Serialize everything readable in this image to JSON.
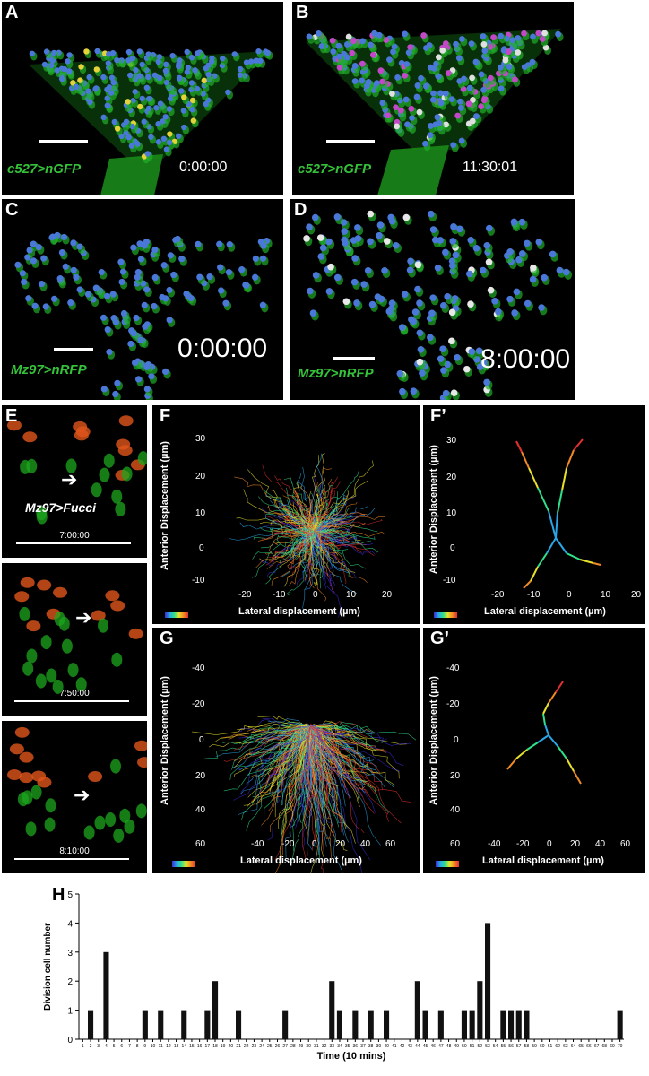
{
  "panels": {
    "A": {
      "label": "A",
      "genotype": "c527>nGFP",
      "time": "0:00:00"
    },
    "B": {
      "label": "B",
      "genotype": "c527>nGFP",
      "time": "11:30:01"
    },
    "C": {
      "label": "C",
      "genotype": "Mz97>nRFP",
      "time": "0:00:00"
    },
    "D": {
      "label": "D",
      "genotype": "Mz97>nRFP",
      "time": "8:00:00"
    },
    "E": {
      "label": "E",
      "genotype": "Mz97>Fucci",
      "times": [
        "7:00:00",
        "7:50:00",
        "8:10:00"
      ]
    },
    "F": {
      "label": "F",
      "ylabel": "Anterior Displacement (µm)",
      "xlabel": "Lateral displacement (µm)",
      "yticks": [
        "30",
        "20",
        "10",
        "0",
        "-10"
      ],
      "xticks": [
        "-20",
        "-10",
        "0",
        "10",
        "20"
      ]
    },
    "F2": {
      "label": "F’",
      "ylabel": "Anterior Displacement (µm)",
      "xlabel": "Lateral displacement (µm)",
      "yticks": [
        "30",
        "20",
        "10",
        "0",
        "-10"
      ],
      "xticks": [
        "-20",
        "-10",
        "0",
        "10",
        "20"
      ]
    },
    "G": {
      "label": "G",
      "ylabel": "Anterior Displacement (µm)",
      "xlabel": "Lateral displacement (µm)",
      "yticks": [
        "-40",
        "-20",
        "0",
        "20",
        "40",
        "60"
      ],
      "xticks": [
        "-40",
        "-20",
        "0",
        "20",
        "40",
        "60"
      ]
    },
    "G2": {
      "label": "G’",
      "ylabel": "Anterior Displacement (µm)",
      "xlabel": "Lateral displacement (µm)",
      "yticks": [
        "-40",
        "-20",
        "0",
        "20",
        "40",
        "60"
      ],
      "xticks": [
        "-40",
        "-20",
        "0",
        "20",
        "40",
        "60"
      ]
    },
    "H": {
      "label": "H"
    }
  },
  "chart_data": {
    "type": "bar",
    "xlabel": "Time (10 mins)",
    "ylabel": "Division cell number",
    "ylim": [
      0,
      5
    ],
    "yticks": [
      0,
      1,
      2,
      3,
      4,
      5
    ],
    "categories": [
      "1",
      "2",
      "3",
      "4",
      "5",
      "6",
      "7",
      "8",
      "9",
      "10",
      "11",
      "12",
      "13",
      "14",
      "15",
      "16",
      "17",
      "18",
      "19",
      "20",
      "21",
      "22",
      "23",
      "24",
      "25",
      "26",
      "27",
      "28",
      "29",
      "30",
      "31",
      "32",
      "33",
      "34",
      "35",
      "36",
      "37",
      "38",
      "39",
      "40",
      "41",
      "42",
      "43",
      "44",
      "45",
      "46",
      "47",
      "48",
      "49",
      "50",
      "51",
      "52",
      "53",
      "54",
      "55",
      "56",
      "57",
      "58",
      "59",
      "60",
      "61",
      "62",
      "63",
      "64",
      "65",
      "66",
      "67",
      "68",
      "69",
      "70"
    ],
    "values": [
      0,
      1,
      0,
      3,
      0,
      0,
      0,
      0,
      1,
      0,
      1,
      0,
      0,
      1,
      0,
      0,
      1,
      2,
      0,
      0,
      1,
      0,
      0,
      0,
      0,
      0,
      1,
      0,
      0,
      0,
      0,
      0,
      2,
      1,
      0,
      1,
      0,
      1,
      0,
      1,
      0,
      0,
      0,
      2,
      1,
      0,
      1,
      0,
      0,
      1,
      1,
      2,
      4,
      0,
      1,
      1,
      1,
      1,
      0,
      0,
      0,
      0,
      0,
      0,
      0,
      0,
      0,
      0,
      0,
      1
    ],
    "bar_color": "#111111"
  }
}
